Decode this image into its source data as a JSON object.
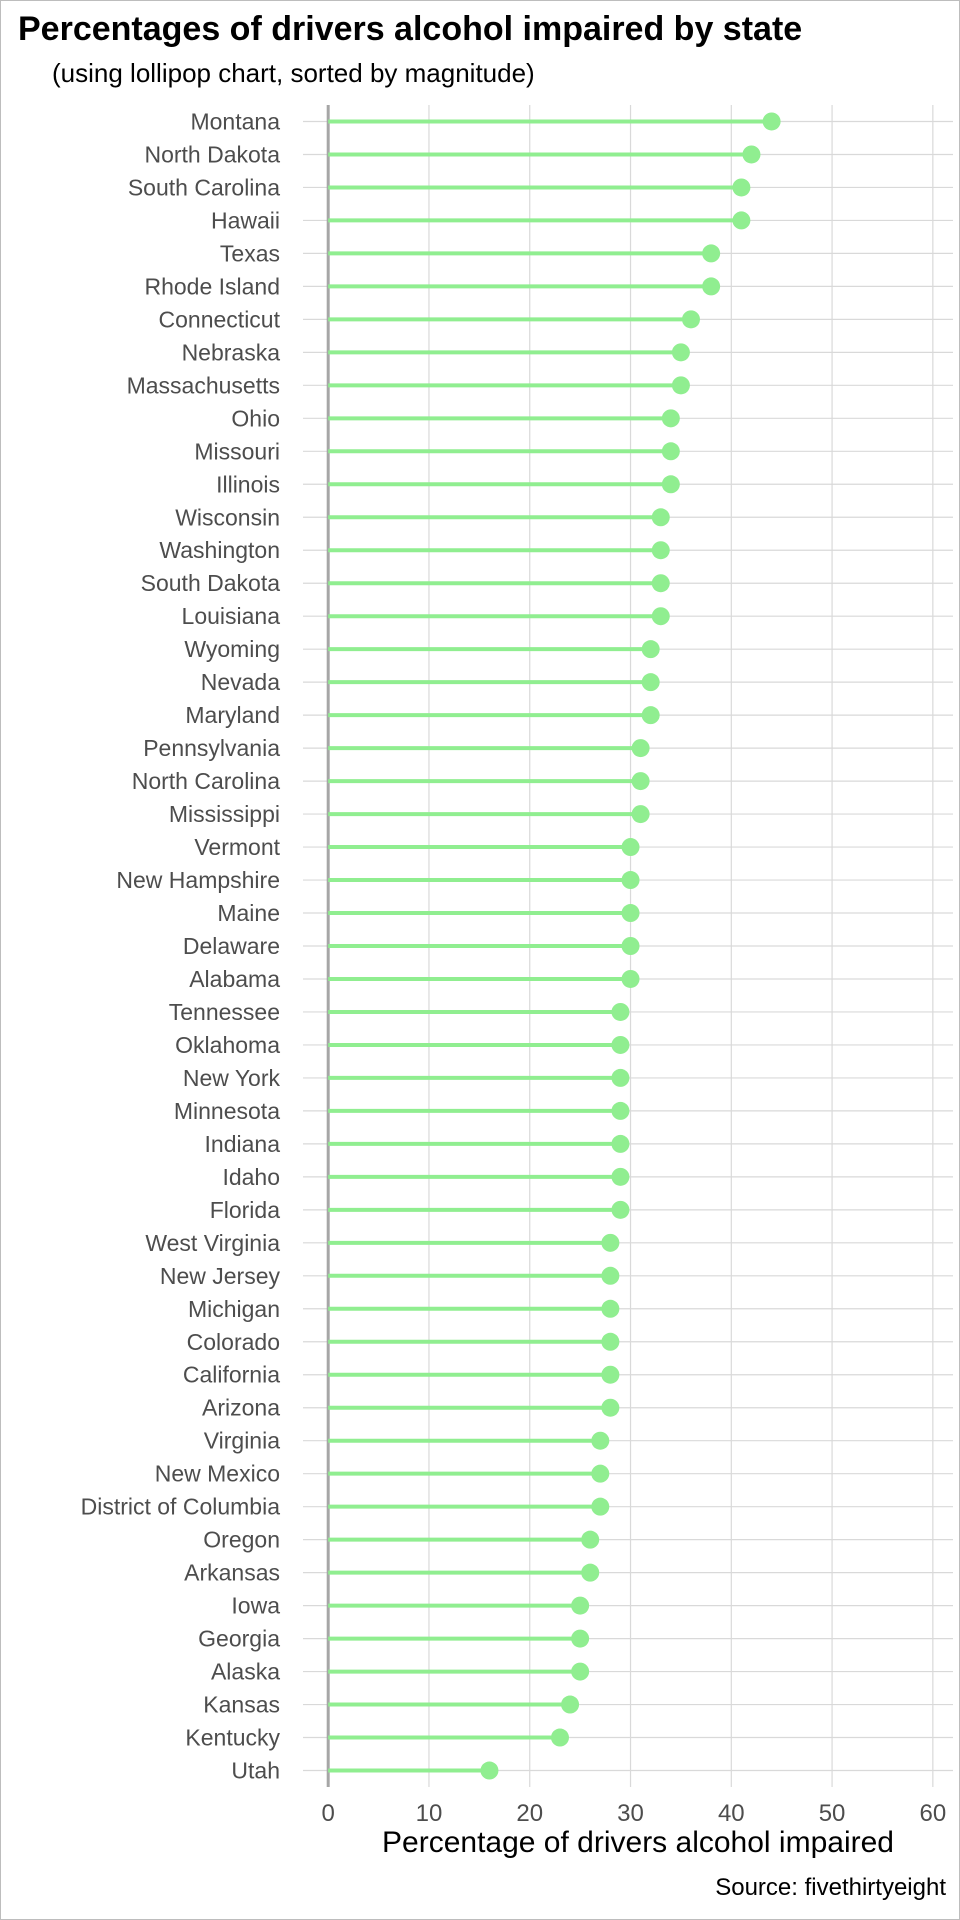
{
  "chart_data": {
    "type": "lollipop",
    "title": "Percentages of drivers alcohol impaired by state",
    "subtitle": "(using lollipop chart, sorted by magnitude)",
    "xlabel": "Percentage of drivers alcohol impaired",
    "caption": "Source: fivethirtyeight",
    "xlim": [
      -2.5,
      62
    ],
    "xticks": [
      0,
      10,
      20,
      30,
      40,
      50,
      60
    ],
    "grid": true,
    "colors": {
      "lollipop": "#90EE90",
      "grid": "#d9d9d9",
      "baseline": "#a6a6a6",
      "tick_text": "#4d4d4d"
    },
    "categories": [
      "Montana",
      "North Dakota",
      "South Carolina",
      "Hawaii",
      "Texas",
      "Rhode Island",
      "Connecticut",
      "Nebraska",
      "Massachusetts",
      "Ohio",
      "Missouri",
      "Illinois",
      "Wisconsin",
      "Washington",
      "South Dakota",
      "Louisiana",
      "Wyoming",
      "Nevada",
      "Maryland",
      "Pennsylvania",
      "North Carolina",
      "Mississippi",
      "Vermont",
      "New Hampshire",
      "Maine",
      "Delaware",
      "Alabama",
      "Tennessee",
      "Oklahoma",
      "New York",
      "Minnesota",
      "Indiana",
      "Idaho",
      "Florida",
      "West Virginia",
      "New Jersey",
      "Michigan",
      "Colorado",
      "California",
      "Arizona",
      "Virginia",
      "New Mexico",
      "District of Columbia",
      "Oregon",
      "Arkansas",
      "Iowa",
      "Georgia",
      "Alaska",
      "Kansas",
      "Kentucky",
      "Utah"
    ],
    "values": [
      44,
      42,
      41,
      41,
      38,
      38,
      36,
      35,
      35,
      34,
      34,
      34,
      33,
      33,
      33,
      33,
      32,
      32,
      32,
      31,
      31,
      31,
      30,
      30,
      30,
      30,
      30,
      29,
      29,
      29,
      29,
      29,
      29,
      29,
      28,
      28,
      28,
      28,
      28,
      28,
      27,
      27,
      27,
      26,
      26,
      25,
      25,
      25,
      24,
      23,
      16
    ]
  }
}
